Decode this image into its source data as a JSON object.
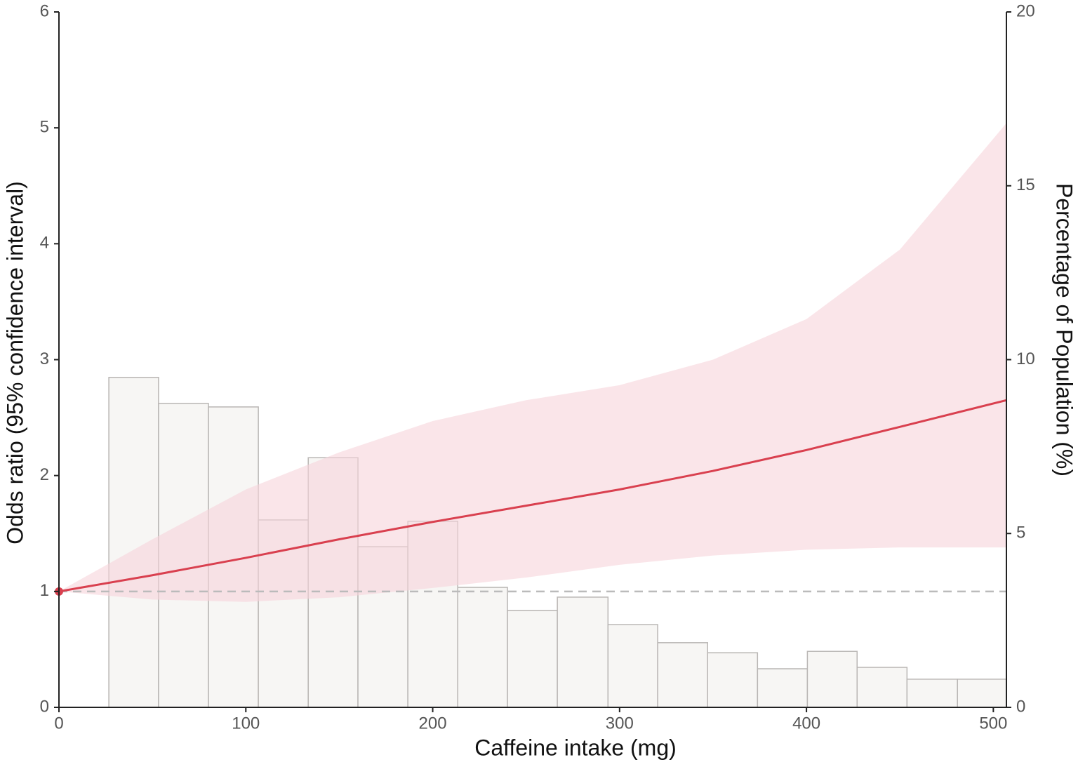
{
  "chart_data": {
    "type": "line",
    "x_label": "Caffeine intake (mg)",
    "y_label": "Odds ratio (95% confidence interval)",
    "y2_label": "Percentage of Population (%)",
    "x": [
      0,
      50,
      100,
      150,
      200,
      250,
      300,
      350,
      400,
      450,
      507
    ],
    "values": [
      1,
      1.14,
      1.29,
      1.45,
      1.6,
      1.74,
      1.88,
      2.04,
      2.22,
      2.42,
      2.65
    ],
    "ci_upper": [
      1,
      1.45,
      1.88,
      2.2,
      2.47,
      2.65,
      2.78,
      3.0,
      3.35,
      3.95,
      5.04
    ],
    "ci_lower": [
      1,
      0.93,
      0.91,
      0.95,
      1.03,
      1.12,
      1.23,
      1.31,
      1.36,
      1.38,
      1.38
    ],
    "color": "#d9404f",
    "band_color": "#f6d3da",
    "reference_line": 1,
    "histogram": {
      "axis": "y2",
      "color": "#f7f6f4",
      "edge_color": "#b9b6b4",
      "bins": [
        26.7,
        53.3,
        80,
        106.7,
        133.4,
        160,
        186.7,
        213.4,
        240,
        266.7,
        293.8,
        320.4,
        347.1,
        373.8,
        400.5,
        427.1,
        453.8,
        480.8,
        507
      ],
      "values": [
        9.49,
        8.74,
        8.64,
        5.39,
        7.18,
        4.62,
        5.35,
        3.45,
        2.79,
        3.17,
        2.38,
        1.86,
        1.57,
        1.11,
        1.61,
        1.15,
        0.81,
        0.81
      ]
    },
    "xlim": [
      0,
      507
    ],
    "xticks": [
      0,
      100,
      200,
      300,
      400,
      500
    ],
    "ylim": [
      0,
      6
    ],
    "yticks": [
      0,
      1,
      2,
      3,
      4,
      5,
      6
    ],
    "y2lim": [
      0,
      20
    ],
    "y2ticks": [
      0,
      5,
      10,
      15,
      20
    ]
  }
}
